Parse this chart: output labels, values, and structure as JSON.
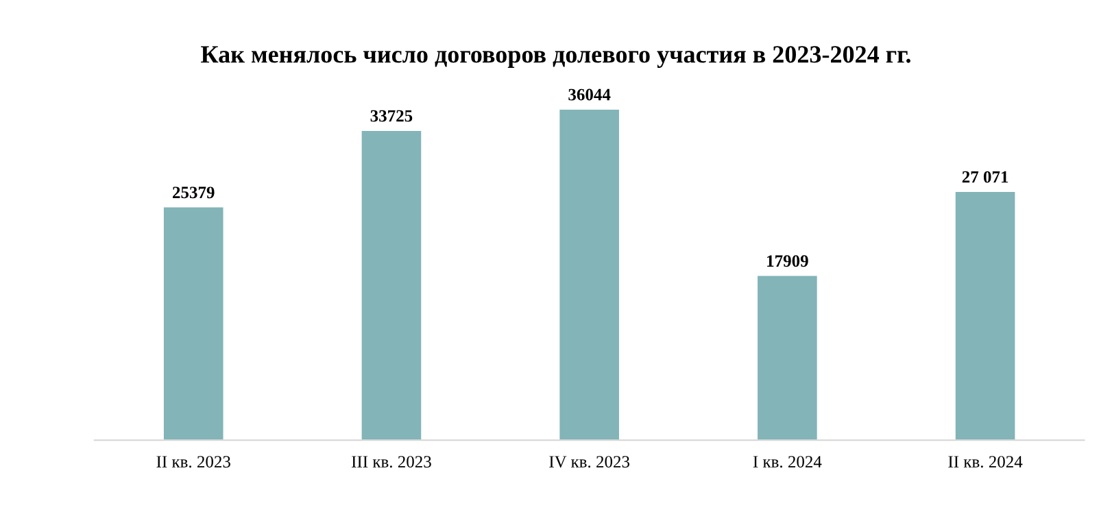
{
  "chart_data": {
    "type": "bar",
    "title": "Как менялось число договоров долевого участия в 2023-2024 гг.",
    "categories": [
      "II кв. 2023",
      "III кв. 2023",
      "IV кв. 2023",
      "I кв. 2024",
      "II кв. 2024"
    ],
    "values": [
      25379,
      33725,
      36044,
      17909,
      27071
    ],
    "value_labels": [
      "25379",
      "33725",
      "36044",
      "17909",
      "27 071"
    ],
    "color": "#82b4b8",
    "grid": false,
    "tick_labels": "x"
  }
}
